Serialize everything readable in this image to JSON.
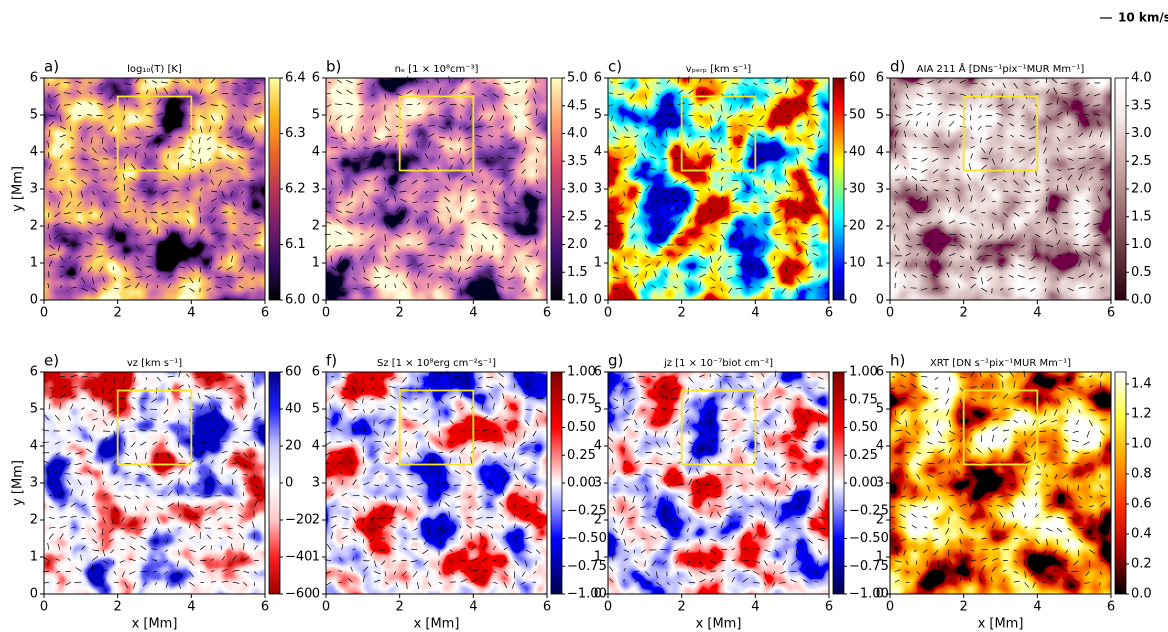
{
  "reference_arrow": {
    "label": "10 km/s"
  },
  "chart_data": [
    {
      "type": "heatmap",
      "panel": "a)",
      "title": "log₁₀(T) [K]",
      "ylabel": "y [Mm]",
      "xlim": [
        0,
        6
      ],
      "ylim": [
        0,
        6
      ],
      "xticks": [
        0,
        2,
        4,
        6
      ],
      "yticks": [
        0,
        1,
        2,
        3,
        4,
        5,
        6
      ],
      "clim": [
        6.0,
        6.4
      ],
      "cticks": [
        {
          "value": 6,
          "label": "6.0"
        },
        6.1,
        6.2,
        6.3,
        6.4
      ],
      "colormap": [
        "#000000",
        "#330a5f",
        "#781c6d",
        "#bc3754",
        "#ed6925",
        "#fbb61a",
        "#fcffa4"
      ],
      "box": {
        "x": [
          2,
          4
        ],
        "y": [
          3.5,
          5.5
        ],
        "color": "#f5e52a"
      }
    },
    {
      "type": "heatmap",
      "panel": "b)",
      "title": "nₑ [1 × 10⁸cm⁻³]",
      "xlim": [
        0,
        6
      ],
      "ylim": [
        0,
        6
      ],
      "xticks": [
        0,
        2,
        4,
        6
      ],
      "yticks": [
        0,
        1,
        2,
        3,
        4,
        5,
        6
      ],
      "clim": [
        1.0,
        5.0
      ],
      "cticks": [
        {
          "value": 1,
          "label": "1.0"
        },
        1.5,
        {
          "value": 2,
          "label": "2.0"
        },
        2.5,
        {
          "value": 3,
          "label": "3.0"
        },
        3.5,
        {
          "value": 4,
          "label": "4.0"
        },
        4.5,
        {
          "value": 5,
          "label": "5.0"
        }
      ],
      "colormap": [
        "#000004",
        "#3b0f70",
        "#8c2981",
        "#de4968",
        "#fe9f6d",
        "#fcfdbf"
      ],
      "box": {
        "x": [
          2,
          4
        ],
        "y": [
          3.5,
          5.5
        ],
        "color": "#f5e52a"
      }
    },
    {
      "type": "heatmap",
      "panel": "c)",
      "title": "vₚₑᵣₚ [km s⁻¹]",
      "xlim": [
        0,
        6
      ],
      "ylim": [
        0,
        6
      ],
      "xticks": [
        0,
        2,
        4,
        6
      ],
      "yticks": [
        0,
        1,
        2,
        3,
        4,
        5,
        6
      ],
      "clim": [
        0,
        60
      ],
      "cticks": [
        0,
        10,
        20,
        30,
        40,
        50,
        60
      ],
      "colormap": [
        "#00007f",
        "#0000ff",
        "#007fff",
        "#00ffff",
        "#7fff7f",
        "#ffff00",
        "#ff7f00",
        "#ff0000",
        "#7f0000"
      ],
      "box": {
        "x": [
          2,
          4
        ],
        "y": [
          3.5,
          5.5
        ],
        "color": "#f5e52a"
      }
    },
    {
      "type": "heatmap",
      "panel": "d)",
      "title": "AIA 211 Å [DNs⁻¹pix⁻¹MUR Mm⁻¹]",
      "xlim": [
        0,
        6
      ],
      "ylim": [
        0,
        6
      ],
      "xticks": [
        0,
        2,
        4,
        6
      ],
      "yticks": [
        0,
        1,
        2,
        3,
        4,
        5,
        6
      ],
      "clim": [
        0.0,
        4.0
      ],
      "cticks": [
        {
          "value": 0,
          "label": "0.0"
        },
        0.5,
        {
          "value": 1,
          "label": "1.0"
        },
        1.5,
        {
          "value": 2,
          "label": "2.0"
        },
        2.5,
        {
          "value": 3,
          "label": "3.0"
        },
        3.5,
        {
          "value": 4,
          "label": "4.0"
        }
      ],
      "colormap": [
        "#2b0010",
        "#5a2a35",
        "#8a5a60",
        "#b48a8a",
        "#d8b8b6",
        "#f5eceb",
        "#ffffff"
      ],
      "box": {
        "x": [
          2,
          4
        ],
        "y": [
          3.5,
          5.5
        ],
        "color": "#f5e52a"
      }
    },
    {
      "type": "heatmap",
      "panel": "e)",
      "title": "vz [km s⁻¹]",
      "ylabel": "y [Mm]",
      "xlabel": "x [Mm]",
      "xlim": [
        0,
        6
      ],
      "ylim": [
        0,
        6
      ],
      "xticks": [
        0,
        2,
        4,
        6
      ],
      "yticks": [
        0,
        1,
        2,
        3,
        4,
        5,
        6
      ],
      "clim": [
        -60,
        60
      ],
      "cticks": [
        {
          "value": -60,
          "label": "−60"
        },
        {
          "value": -40,
          "label": "−40"
        },
        {
          "value": -20,
          "label": "−20"
        },
        0,
        20,
        40,
        60
      ],
      "colormap": [
        "#a00000",
        "#ff2020",
        "#ffc8c8",
        "#ffffff",
        "#c8c8ff",
        "#2020ff",
        "#00008b"
      ],
      "box": {
        "x": [
          2,
          4
        ],
        "y": [
          3.5,
          5.5
        ],
        "color": "#f5e52a"
      }
    },
    {
      "type": "heatmap",
      "panel": "f)",
      "title": "Sz [1 × 10⁸erg cm⁻²s⁻¹]",
      "xlabel": "x [Mm]",
      "xlim": [
        0,
        6
      ],
      "ylim": [
        0,
        6
      ],
      "xticks": [
        0,
        2,
        4,
        6
      ],
      "yticks": [
        0,
        1,
        2,
        3,
        4,
        5,
        6
      ],
      "clim": [
        -1,
        1
      ],
      "cticks": [
        {
          "value": -1,
          "label": "−1.00"
        },
        {
          "value": -0.75,
          "label": "−0.75"
        },
        {
          "value": -0.5,
          "label": "−0.50"
        },
        {
          "value": -0.25,
          "label": "−0.25"
        },
        {
          "value": 0,
          "label": "0.00"
        },
        0.25,
        {
          "value": 0.5,
          "label": "0.50"
        },
        0.75,
        {
          "value": 1,
          "label": "1.00"
        }
      ],
      "colormap": [
        "#00004c",
        "#0000ff",
        "#ffffff",
        "#ff0000",
        "#7f0000"
      ],
      "box": {
        "x": [
          2,
          4
        ],
        "y": [
          3.5,
          5.5
        ],
        "color": "#f5e52a"
      }
    },
    {
      "type": "heatmap",
      "panel": "g)",
      "title": "jz [1 × 10⁻⁷biot cm⁻²]",
      "xlabel": "x [Mm]",
      "xlim": [
        0,
        6
      ],
      "ylim": [
        0,
        6
      ],
      "xticks": [
        0,
        2,
        4,
        6
      ],
      "yticks": [
        0,
        1,
        2,
        3,
        4,
        5,
        6
      ],
      "clim": [
        -1,
        1
      ],
      "cticks": [
        {
          "value": -1,
          "label": "−1.00"
        },
        {
          "value": -0.75,
          "label": "−0.75"
        },
        {
          "value": -0.5,
          "label": "−0.50"
        },
        {
          "value": -0.25,
          "label": "−0.25"
        },
        {
          "value": 0,
          "label": "0.00"
        },
        0.25,
        {
          "value": 0.5,
          "label": "0.50"
        },
        0.75,
        {
          "value": 1,
          "label": "1.00"
        }
      ],
      "colormap": [
        "#00004c",
        "#0000ff",
        "#ffffff",
        "#ff0000",
        "#7f0000"
      ],
      "box": {
        "x": [
          2,
          4
        ],
        "y": [
          3.5,
          5.5
        ],
        "color": "#f5e52a"
      }
    },
    {
      "type": "heatmap",
      "panel": "h)",
      "title": "XRT [DN s⁻¹pix⁻¹MUR Mm⁻¹]",
      "xlabel": "x [Mm]",
      "xlim": [
        0,
        6
      ],
      "ylim": [
        0,
        6
      ],
      "xticks": [
        0,
        2,
        4,
        6
      ],
      "yticks": [
        0,
        1,
        2,
        3,
        4,
        5,
        6
      ],
      "clim": [
        0,
        1.48
      ],
      "cticks": [
        {
          "value": 0,
          "label": "0.0"
        },
        0.2,
        0.4,
        0.6,
        0.8,
        {
          "value": 1,
          "label": "1.0"
        },
        1.2,
        1.4
      ],
      "colormap": [
        "#000000",
        "#b00000",
        "#ff3000",
        "#ffa000",
        "#ffff40",
        "#ffffff"
      ],
      "box": {
        "x": [
          2,
          4
        ],
        "y": [
          3.5,
          5.5
        ],
        "color": "#f5e52a"
      }
    }
  ]
}
